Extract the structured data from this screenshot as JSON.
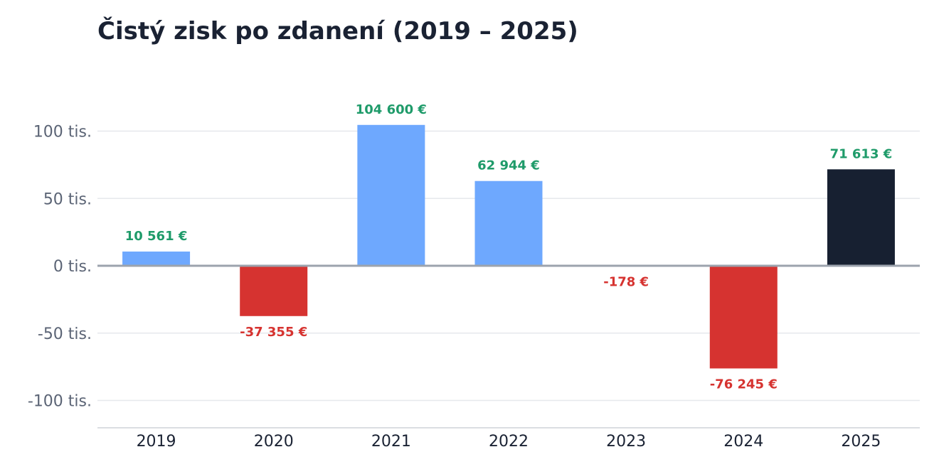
{
  "chart_data": {
    "type": "bar",
    "title": "Čistý zisk po zdanení (2019 – 2025)",
    "xlabel": "",
    "ylabel": "",
    "categories": [
      "2019",
      "2020",
      "2021",
      "2022",
      "2023",
      "2024",
      "2025"
    ],
    "values": [
      10561,
      -37355,
      104600,
      62944,
      -178,
      -76245,
      71613
    ],
    "data_labels": [
      "10 561 €",
      "-37 355 €",
      "104 600 €",
      "62 944 €",
      "-178 €",
      "-76 245 €",
      "71 613 €"
    ],
    "ylim": [
      -120000,
      120000
    ],
    "yticks": [
      100000,
      50000,
      0,
      -50000,
      -100000
    ],
    "ytick_labels": [
      "100 tis.",
      "50 tis.",
      "0 tis.",
      "-50 tis.",
      "-100 tis."
    ],
    "grid": true,
    "legend": "none",
    "colors": {
      "positive": "#6ea8fe",
      "negative": "#d63330",
      "highlight": "#172031",
      "label_positive": "#1f9b6a",
      "label_negative": "#d63330",
      "grid": "#e6e8ec",
      "zero_line": "#9ca3ad"
    },
    "highlight_category": "2025"
  }
}
